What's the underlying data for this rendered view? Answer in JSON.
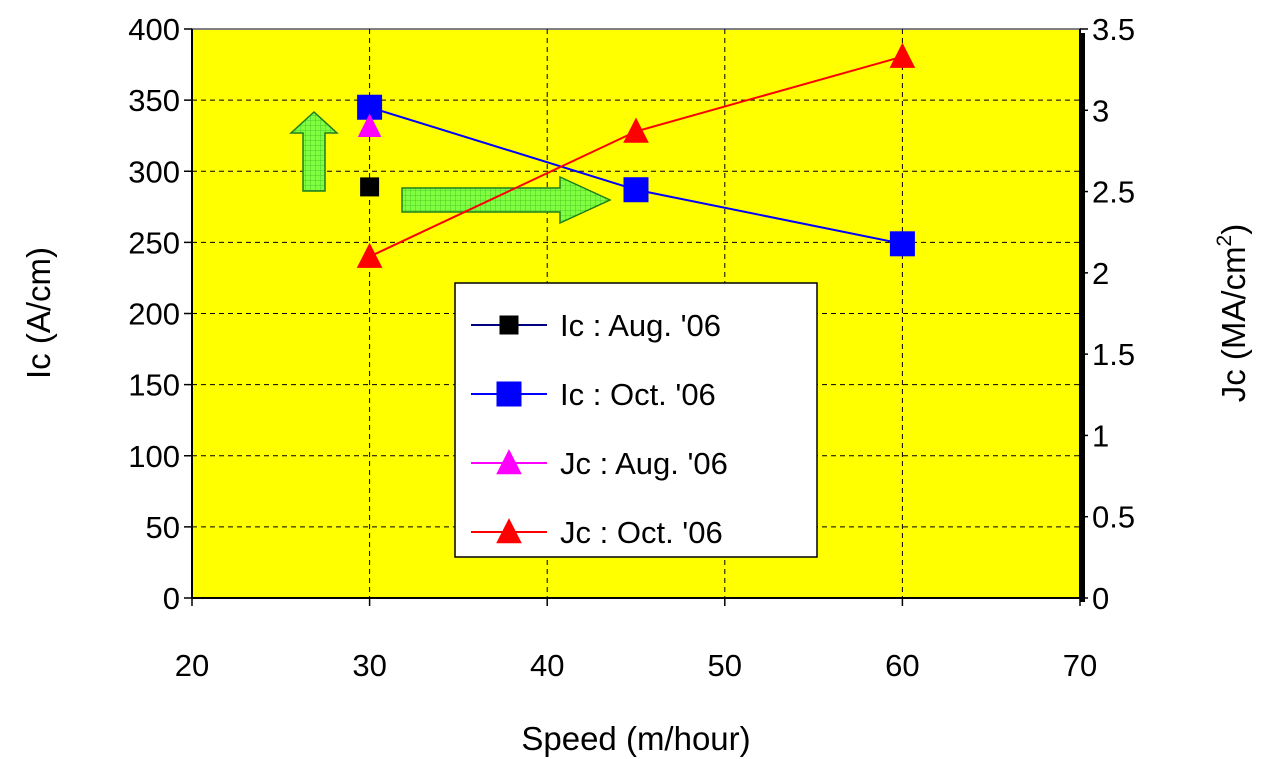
{
  "chart_data": {
    "type": "line",
    "xlabel": "Speed (m/hour)",
    "ylabel": "Ic (A/cm)",
    "y2label": "Jc (MA/cm",
    "y2label_superscript": "2",
    "y2label_close": ")",
    "xlim": [
      20,
      70
    ],
    "ylim": [
      0,
      400
    ],
    "y2lim": [
      0,
      3.5
    ],
    "x_ticks": [
      "20",
      "30",
      "40",
      "50",
      "60",
      "70"
    ],
    "y_ticks": [
      "0",
      "50",
      "100",
      "150",
      "200",
      "250",
      "300",
      "350",
      "400"
    ],
    "y2_ticks": [
      "0",
      "0.5",
      "1",
      "1.5",
      "2",
      "2.5",
      "3",
      "3.5"
    ],
    "grid": true,
    "background_color": "#ffff00",
    "legend_position": "center-bottom",
    "series": [
      {
        "name": "Ic : Aug. '06",
        "axis": "left",
        "marker": "square",
        "color": "#000080",
        "marker_color": "#000000",
        "x": [
          30
        ],
        "y": [
          289
        ]
      },
      {
        "name": "Ic : Oct. '06",
        "axis": "left",
        "marker": "square",
        "color": "#0000ff",
        "marker_color": "#0000ff",
        "x": [
          30,
          45,
          60
        ],
        "y": [
          345,
          287,
          249
        ]
      },
      {
        "name": "Jc : Aug. '06",
        "axis": "right",
        "marker": "triangle",
        "color": "#ff00ff",
        "marker_color": "#ff00ff",
        "x": [
          30
        ],
        "y": [
          2.9
        ]
      },
      {
        "name": "Jc : Oct. '06",
        "axis": "right",
        "marker": "triangle",
        "color": "#ff0000",
        "marker_color": "#ff0000",
        "x": [
          30,
          45,
          60
        ],
        "y": [
          2.1,
          2.87,
          3.33
        ]
      }
    ],
    "annotations": [
      {
        "kind": "up-arrow",
        "color": "#66ff33"
      },
      {
        "kind": "right-arrow",
        "color": "#66ff33"
      }
    ]
  }
}
